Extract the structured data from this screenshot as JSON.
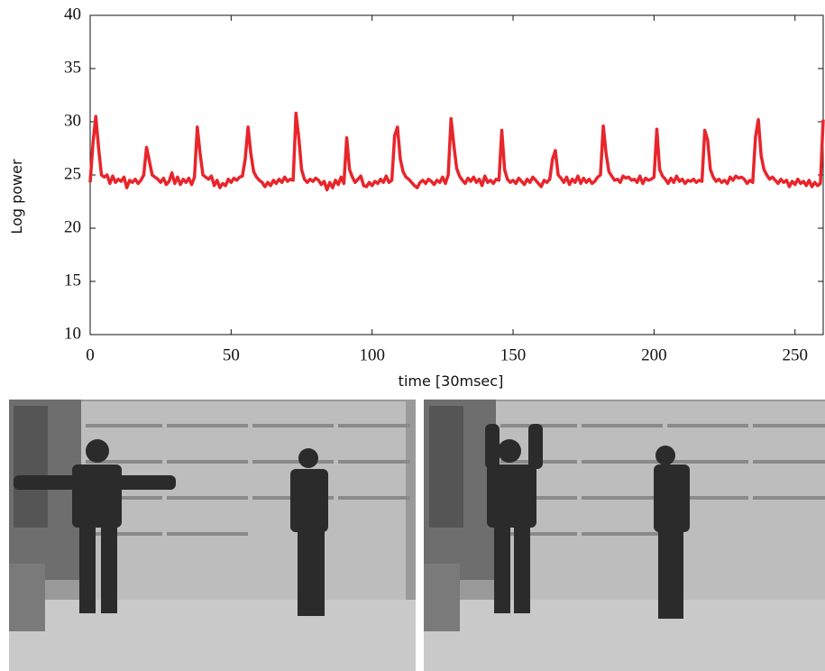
{
  "chart_data": {
    "type": "line",
    "xlabel": "time [30msec]",
    "ylabel": "Log power",
    "color": "#e8252b",
    "xlim": [
      0,
      260
    ],
    "ylim": [
      10,
      40
    ],
    "xticks": [
      0,
      50,
      100,
      150,
      200,
      250
    ],
    "yticks": [
      10,
      15,
      20,
      25,
      30,
      35,
      40
    ],
    "x": [
      0,
      1,
      2,
      3,
      4,
      5,
      6,
      7,
      8,
      9,
      10,
      11,
      12,
      13,
      14,
      15,
      16,
      17,
      18,
      19,
      20,
      21,
      22,
      23,
      24,
      25,
      26,
      27,
      28,
      29,
      30,
      31,
      32,
      33,
      34,
      35,
      36,
      37,
      38,
      39,
      40,
      41,
      42,
      43,
      44,
      45,
      46,
      47,
      48,
      49,
      50,
      51,
      52,
      53,
      54,
      55,
      56,
      57,
      58,
      59,
      60,
      61,
      62,
      63,
      64,
      65,
      66,
      67,
      68,
      69,
      70,
      71,
      72,
      73,
      74,
      75,
      76,
      77,
      78,
      79,
      80,
      81,
      82,
      83,
      84,
      85,
      86,
      87,
      88,
      89,
      90,
      91,
      92,
      93,
      94,
      95,
      96,
      97,
      98,
      99,
      100,
      101,
      102,
      103,
      104,
      105,
      106,
      107,
      108,
      109,
      110,
      111,
      112,
      113,
      114,
      115,
      116,
      117,
      118,
      119,
      120,
      121,
      122,
      123,
      124,
      125,
      126,
      127,
      128,
      129,
      130,
      131,
      132,
      133,
      134,
      135,
      136,
      137,
      138,
      139,
      140,
      141,
      142,
      143,
      144,
      145,
      146,
      147,
      148,
      149,
      150,
      151,
      152,
      153,
      154,
      155,
      156,
      157,
      158,
      159,
      160,
      161,
      162,
      163,
      164,
      165,
      166,
      167,
      168,
      169,
      170,
      171,
      172,
      173,
      174,
      175,
      176,
      177,
      178,
      179,
      180,
      181,
      182,
      183,
      184,
      185,
      186,
      187,
      188,
      189,
      190,
      191,
      192,
      193,
      194,
      195,
      196,
      197,
      198,
      199,
      200,
      201,
      202,
      203,
      204,
      205,
      206,
      207,
      208,
      209,
      210,
      211,
      212,
      213,
      214,
      215,
      216,
      217,
      218,
      219,
      220,
      221,
      222,
      223,
      224,
      225,
      226,
      227,
      228,
      229,
      230,
      231,
      232,
      233,
      234,
      235,
      236,
      237,
      238,
      239,
      240,
      241,
      242,
      243,
      244,
      245,
      246,
      247,
      248,
      249,
      250,
      251,
      252,
      253,
      254,
      255,
      256,
      257,
      258,
      259,
      260
    ],
    "values": [
      24.3,
      28.0,
      30.5,
      27.5,
      25.0,
      24.8,
      25.0,
      24.2,
      24.9,
      24.3,
      24.6,
      24.4,
      24.8,
      23.8,
      24.5,
      24.3,
      24.6,
      24.2,
      24.5,
      25.0,
      27.6,
      26.3,
      25.0,
      24.8,
      24.6,
      24.3,
      24.7,
      24.1,
      24.4,
      25.2,
      24.2,
      24.8,
      24.1,
      24.6,
      24.3,
      24.7,
      24.1,
      24.8,
      29.5,
      27.0,
      25.0,
      24.8,
      24.6,
      24.9,
      24.0,
      24.5,
      23.8,
      24.2,
      24.0,
      24.6,
      24.3,
      24.7,
      24.5,
      24.8,
      24.9,
      26.5,
      29.5,
      27.0,
      25.3,
      24.8,
      24.5,
      24.3,
      23.9,
      24.3,
      24.0,
      24.5,
      24.2,
      24.6,
      24.3,
      24.8,
      24.4,
      24.6,
      24.5,
      30.8,
      28.5,
      25.5,
      24.6,
      24.3,
      24.6,
      24.4,
      24.7,
      24.5,
      24.1,
      24.4,
      23.6,
      24.3,
      23.8,
      24.5,
      24.1,
      24.8,
      24.2,
      28.5,
      25.5,
      24.8,
      24.3,
      24.6,
      24.9,
      24.0,
      23.9,
      24.3,
      24.0,
      24.4,
      24.2,
      24.6,
      24.3,
      24.9,
      24.3,
      24.5,
      28.7,
      29.5,
      26.5,
      25.3,
      24.8,
      24.6,
      24.3,
      24.0,
      23.8,
      24.3,
      24.5,
      24.2,
      24.6,
      24.4,
      24.1,
      24.5,
      24.3,
      24.8,
      24.2,
      25.0,
      30.3,
      27.8,
      25.6,
      24.9,
      24.5,
      24.2,
      24.7,
      24.4,
      24.8,
      24.3,
      24.6,
      24.0,
      24.9,
      24.3,
      24.5,
      24.2,
      24.6,
      24.5,
      29.2,
      25.5,
      24.6,
      24.3,
      24.5,
      24.2,
      24.7,
      24.4,
      24.1,
      24.6,
      24.3,
      24.8,
      24.5,
      24.2,
      23.9,
      24.5,
      24.3,
      24.6,
      26.5,
      27.3,
      25.0,
      24.7,
      24.3,
      24.8,
      24.1,
      24.6,
      24.3,
      24.9,
      24.2,
      24.7,
      24.3,
      24.6,
      24.2,
      24.4,
      24.8,
      25.0,
      29.6,
      27.0,
      25.3,
      24.9,
      24.5,
      24.6,
      24.3,
      24.9,
      24.7,
      24.8,
      24.5,
      24.6,
      24.3,
      24.9,
      24.2,
      24.7,
      24.5,
      24.6,
      24.8,
      29.3,
      25.5,
      24.9,
      24.6,
      24.2,
      24.7,
      24.3,
      24.9,
      24.4,
      24.6,
      24.2,
      24.5,
      24.4,
      24.6,
      24.3,
      24.5,
      24.4,
      29.2,
      28.3,
      25.5,
      24.8,
      24.4,
      24.6,
      24.3,
      24.5,
      24.2,
      24.8,
      24.5,
      24.9,
      24.7,
      24.8,
      24.6,
      24.2,
      24.5,
      24.3,
      28.6,
      30.2,
      26.8,
      25.5,
      25.0,
      24.6,
      24.8,
      24.5,
      24.2,
      24.6,
      24.3,
      24.5,
      23.9,
      24.4,
      24.1,
      24.6,
      24.2,
      24.4,
      24.0,
      24.5,
      23.9,
      24.3,
      24.0,
      24.2,
      30.2
    ]
  }
}
